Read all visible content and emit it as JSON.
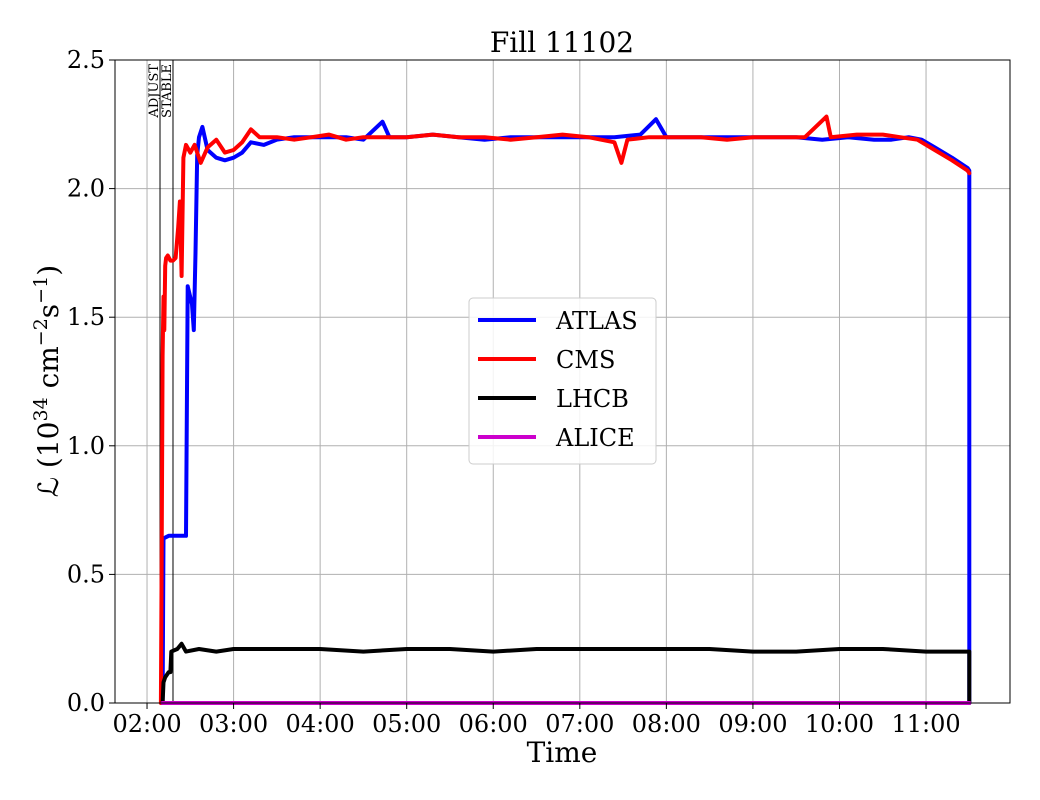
{
  "chart_data": {
    "type": "line",
    "title": "Fill 11102",
    "xlabel": "Time",
    "ylabel_prefix": "ℒ (10",
    "ylabel_exp1": "34",
    "ylabel_mid1": " cm",
    "ylabel_exp2": "−2",
    "ylabel_mid2": "s",
    "ylabel_exp3": "−1",
    "ylabel_suffix": ")",
    "x_unit": "hours",
    "xlim": [
      1.63,
      11.97
    ],
    "ylim": [
      0,
      2.5
    ],
    "xticks": [
      {
        "value": 2,
        "label": "02:00"
      },
      {
        "value": 3,
        "label": "03:00"
      },
      {
        "value": 4,
        "label": "04:00"
      },
      {
        "value": 5,
        "label": "05:00"
      },
      {
        "value": 6,
        "label": "06:00"
      },
      {
        "value": 7,
        "label": "07:00"
      },
      {
        "value": 8,
        "label": "08:00"
      },
      {
        "value": 9,
        "label": "09:00"
      },
      {
        "value": 10,
        "label": "10:00"
      },
      {
        "value": 11,
        "label": "11:00"
      }
    ],
    "yticks": [
      {
        "value": 0,
        "label": "0.0"
      },
      {
        "value": 0.5,
        "label": "0.5"
      },
      {
        "value": 1.0,
        "label": "1.0"
      },
      {
        "value": 1.5,
        "label": "1.5"
      },
      {
        "value": 2.0,
        "label": "2.0"
      },
      {
        "value": 2.5,
        "label": "2.5"
      }
    ],
    "grid": true,
    "legend_position": "center-right",
    "annotations": [
      {
        "text": "ADJUST",
        "x": 2.15
      },
      {
        "text": "STABLE",
        "x": 2.3
      }
    ],
    "series": [
      {
        "name": "ATLAS",
        "color": "#0000ff",
        "points": [
          [
            2.18,
            0.0
          ],
          [
            2.19,
            0.64
          ],
          [
            2.25,
            0.65
          ],
          [
            2.35,
            0.65
          ],
          [
            2.45,
            0.65
          ],
          [
            2.47,
            1.62
          ],
          [
            2.52,
            1.55
          ],
          [
            2.54,
            1.45
          ],
          [
            2.56,
            1.75
          ],
          [
            2.58,
            2.13
          ],
          [
            2.6,
            2.2
          ],
          [
            2.64,
            2.24
          ],
          [
            2.7,
            2.15
          ],
          [
            2.8,
            2.12
          ],
          [
            2.9,
            2.11
          ],
          [
            3.0,
            2.12
          ],
          [
            3.1,
            2.14
          ],
          [
            3.2,
            2.18
          ],
          [
            3.35,
            2.17
          ],
          [
            3.5,
            2.19
          ],
          [
            3.7,
            2.2
          ],
          [
            3.9,
            2.2
          ],
          [
            4.1,
            2.2
          ],
          [
            4.3,
            2.2
          ],
          [
            4.5,
            2.19
          ],
          [
            4.72,
            2.26
          ],
          [
            4.8,
            2.2
          ],
          [
            5.0,
            2.2
          ],
          [
            5.3,
            2.21
          ],
          [
            5.6,
            2.2
          ],
          [
            5.9,
            2.19
          ],
          [
            6.2,
            2.2
          ],
          [
            6.5,
            2.2
          ],
          [
            6.8,
            2.2
          ],
          [
            7.1,
            2.2
          ],
          [
            7.4,
            2.2
          ],
          [
            7.7,
            2.21
          ],
          [
            7.88,
            2.27
          ],
          [
            8.0,
            2.2
          ],
          [
            8.3,
            2.2
          ],
          [
            8.6,
            2.2
          ],
          [
            8.9,
            2.2
          ],
          [
            9.2,
            2.2
          ],
          [
            9.5,
            2.2
          ],
          [
            9.8,
            2.19
          ],
          [
            10.1,
            2.2
          ],
          [
            10.4,
            2.19
          ],
          [
            10.6,
            2.19
          ],
          [
            10.8,
            2.2
          ],
          [
            10.95,
            2.19
          ],
          [
            11.1,
            2.16
          ],
          [
            11.3,
            2.12
          ],
          [
            11.48,
            2.08
          ],
          [
            11.5,
            2.07
          ],
          [
            11.5,
            0.0
          ]
        ]
      },
      {
        "name": "CMS",
        "color": "#ff0000",
        "points": [
          [
            2.16,
            0.0
          ],
          [
            2.17,
            0.6
          ],
          [
            2.18,
            1.35
          ],
          [
            2.19,
            1.58
          ],
          [
            2.2,
            1.45
          ],
          [
            2.21,
            1.7
          ],
          [
            2.22,
            1.73
          ],
          [
            2.24,
            1.74
          ],
          [
            2.27,
            1.72
          ],
          [
            2.3,
            1.72
          ],
          [
            2.33,
            1.73
          ],
          [
            2.36,
            1.85
          ],
          [
            2.38,
            1.95
          ],
          [
            2.4,
            1.66
          ],
          [
            2.42,
            2.12
          ],
          [
            2.45,
            2.17
          ],
          [
            2.5,
            2.14
          ],
          [
            2.55,
            2.17
          ],
          [
            2.62,
            2.1
          ],
          [
            2.7,
            2.16
          ],
          [
            2.8,
            2.19
          ],
          [
            2.9,
            2.14
          ],
          [
            3.0,
            2.15
          ],
          [
            3.1,
            2.18
          ],
          [
            3.2,
            2.23
          ],
          [
            3.3,
            2.2
          ],
          [
            3.5,
            2.2
          ],
          [
            3.7,
            2.19
          ],
          [
            3.9,
            2.2
          ],
          [
            4.1,
            2.21
          ],
          [
            4.3,
            2.19
          ],
          [
            4.5,
            2.2
          ],
          [
            4.7,
            2.2
          ],
          [
            5.0,
            2.2
          ],
          [
            5.3,
            2.21
          ],
          [
            5.6,
            2.2
          ],
          [
            5.9,
            2.2
          ],
          [
            6.2,
            2.19
          ],
          [
            6.5,
            2.2
          ],
          [
            6.8,
            2.21
          ],
          [
            7.1,
            2.2
          ],
          [
            7.4,
            2.18
          ],
          [
            7.48,
            2.1
          ],
          [
            7.55,
            2.19
          ],
          [
            7.8,
            2.2
          ],
          [
            8.1,
            2.2
          ],
          [
            8.4,
            2.2
          ],
          [
            8.7,
            2.19
          ],
          [
            9.0,
            2.2
          ],
          [
            9.3,
            2.2
          ],
          [
            9.6,
            2.2
          ],
          [
            9.85,
            2.28
          ],
          [
            9.9,
            2.2
          ],
          [
            10.2,
            2.21
          ],
          [
            10.5,
            2.21
          ],
          [
            10.7,
            2.2
          ],
          [
            10.9,
            2.19
          ],
          [
            11.1,
            2.15
          ],
          [
            11.3,
            2.11
          ],
          [
            11.48,
            2.07
          ],
          [
            11.5,
            2.06
          ]
        ]
      },
      {
        "name": "LHCB",
        "color": "#000000",
        "points": [
          [
            2.18,
            0.0
          ],
          [
            2.19,
            0.08
          ],
          [
            2.21,
            0.1
          ],
          [
            2.25,
            0.12
          ],
          [
            2.27,
            0.12
          ],
          [
            2.28,
            0.2
          ],
          [
            2.35,
            0.21
          ],
          [
            2.4,
            0.23
          ],
          [
            2.45,
            0.2
          ],
          [
            2.6,
            0.21
          ],
          [
            2.8,
            0.2
          ],
          [
            3.0,
            0.21
          ],
          [
            3.5,
            0.21
          ],
          [
            4.0,
            0.21
          ],
          [
            4.5,
            0.2
          ],
          [
            5.0,
            0.21
          ],
          [
            5.5,
            0.21
          ],
          [
            6.0,
            0.2
          ],
          [
            6.5,
            0.21
          ],
          [
            7.0,
            0.21
          ],
          [
            7.5,
            0.21
          ],
          [
            8.0,
            0.21
          ],
          [
            8.5,
            0.21
          ],
          [
            9.0,
            0.2
          ],
          [
            9.5,
            0.2
          ],
          [
            10.0,
            0.21
          ],
          [
            10.5,
            0.21
          ],
          [
            11.0,
            0.2
          ],
          [
            11.5,
            0.2
          ],
          [
            11.5,
            0.0
          ]
        ]
      },
      {
        "name": "ALICE",
        "color": "#cc00cc",
        "points": [
          [
            2.18,
            0.0
          ],
          [
            11.5,
            0.0
          ]
        ]
      }
    ]
  }
}
